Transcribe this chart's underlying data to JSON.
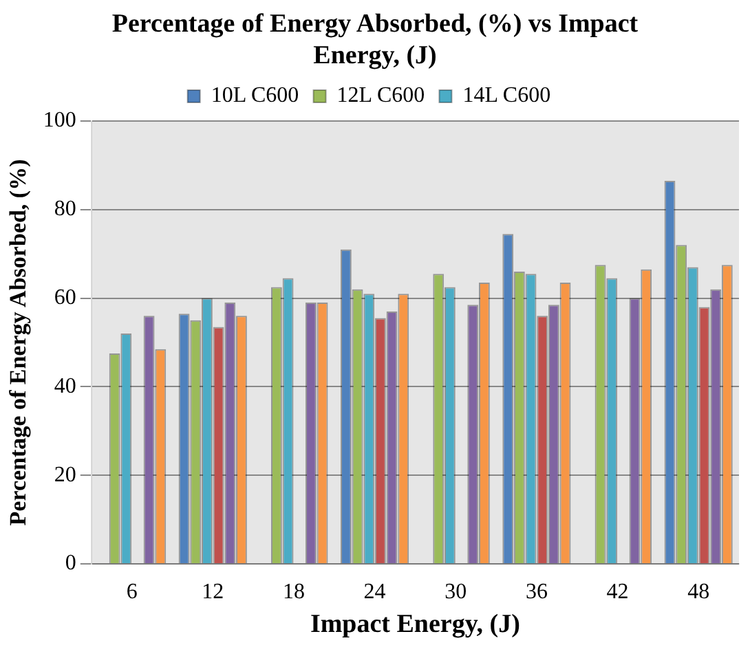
{
  "chart_data": {
    "type": "bar",
    "title": "Percentage of Energy Absorbed, (%) vs Impact Energy, (J)",
    "xlabel": "Impact Energy, (J)",
    "ylabel": "Percentage of Energy Absorbed, (%)",
    "categories": [
      "6",
      "12",
      "18",
      "24",
      "30",
      "36",
      "42",
      "48"
    ],
    "series": [
      {
        "name": "10L C600",
        "color": "#4f81bd",
        "values": [
          null,
          56.5,
          null,
          71,
          null,
          74.5,
          null,
          86.5
        ]
      },
      {
        "name": "12L C600",
        "color": "#9bbb59",
        "values": [
          47.5,
          55,
          62.5,
          62,
          65.5,
          66,
          67.5,
          72
        ]
      },
      {
        "name": "14L C600",
        "color": "#4bacc6",
        "values": [
          52,
          60,
          64.5,
          61,
          62.5,
          65.5,
          64.5,
          67
        ]
      },
      {
        "color": "#c0504d",
        "values": [
          null,
          53.5,
          null,
          55.5,
          null,
          56,
          null,
          58
        ]
      },
      {
        "color": "#8064a2",
        "values": [
          56,
          59,
          59,
          57,
          58.5,
          58.5,
          60,
          62
        ]
      },
      {
        "color": "#f79646",
        "values": [
          48.5,
          56,
          59,
          61,
          63.5,
          63.5,
          66.5,
          67.5
        ]
      }
    ],
    "ylim": [
      0,
      100
    ],
    "yticks": [
      0,
      20,
      40,
      60,
      80,
      100
    ],
    "grid": "y",
    "legend": "top"
  }
}
